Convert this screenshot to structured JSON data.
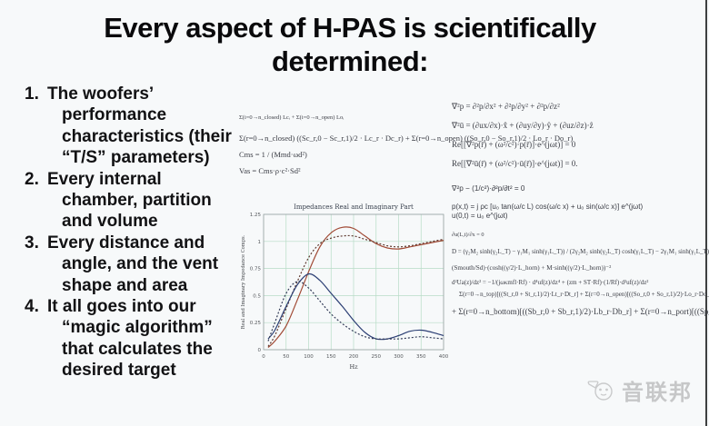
{
  "slide": {
    "title_line1": "Every aspect of H-PAS is scientifically",
    "title_line2": "determined:",
    "bullets": [
      {
        "num": "1.",
        "text": "The woofers’ performance characteristics (their “T/S” parameters)"
      },
      {
        "num": "2.",
        "text": "Every internal chamber, partition and volume"
      },
      {
        "num": "3.",
        "text": "Every distance and angle, and the vent shape and area"
      },
      {
        "num": "4.",
        "text": "It all goes into our “magic algorithm” that calculates the desired target"
      }
    ]
  },
  "math_mid": {
    "equations": [
      "Σ(i=0→n_closed) Lcᵢ  +  Σ(i=0→n_open) Loᵢ",
      "Σ(r=0→n_closed) ((Sc_r,0 − Sc_r,1)/2 · Lc_r · Dc_r)  +  Σ(r=0→n_open) ((So_r,0 − So_r,1)/2 · Lo_r · Do_r)",
      "Cms = 1 / (Mmd·ωd²)",
      "Vas = Cms·ρ·c²·Sd²"
    ]
  },
  "math_right": {
    "equations": [
      "∇²p = ∂²p/∂x² + ∂²p/∂y² + ∂²p/∂z²",
      "∇²ū = (∂ux/∂x)·x̂ + (∂uy/∂y)·ŷ + (∂uz/∂z)·ẑ",
      "Re[[∇²p(r̄) + (ω²/c²)·p(r̄)]·e^(jωt)] = 0",
      "Re[[∇²ū(r̄) + (ω²/c²)·ū(r̄)]·e^(jωt)] = 0.",
      "∇²p − (1/c²)·∂²p/∂t² = 0",
      "p(x,t) = j ρc [u₀ tan(ω/c L) cos(ω/c x) + u₀ sin(ω/c x)] e^(jωt)",
      "u(0,t) = u₀ e^(jωt)",
      "∂u(L,t)/∂x = 0",
      "D = (γ₂M₂ sinh(γ₂L_T) − γ₁M₁ sinh(γ₁L_T)) / (2γ₂M₂ sinh(γ₂L_T) cosh(γ₁L_T) − 2γ₁M₁ sinh(γ₁L_T) cosh(γ₂L_T))",
      "(Smouth/Sd)·(cosh((γ/2)·L_horn) + M·sinh((γ/2)·L_horn))⁻²",
      "d²Ua(z)/dz² = −1/(jωκmfl·Rf) · d⁴uf(z)/dz⁴ + (zm + ST·Rf)·(1/Rf)·d²uf(z)/dz²",
      "Σ(r=0→n_top)[((St_r,0 + St_r,1)/2)·Lt_r·Dt_r] + Σ(r=0→n_open)[((So_r,0 + So_r,1)/2)·Lo_r·Do_r] −",
      "+ Σ(r=0→n_bottom)[((Sb_r,0 + Sb_r,1)/2)·Lb_r·Db_r] + Σ(r=0→n_port)[((Sp_r,0 + Sp_r,1)/2)·Lp_r·Dp_r]"
    ]
  },
  "watermark": {
    "logo_icon": "speech-bubble-panda",
    "text": "音联邦"
  },
  "chart_data": {
    "type": "line",
    "title": "Impedances Real and Imaginary Part",
    "xlabel": "Hz",
    "ylabel": "Real and Imaginary Impedance Comps.",
    "xlim": [
      0,
      400
    ],
    "ylim": [
      0,
      1.25
    ],
    "xticks": [
      0,
      50,
      100,
      150,
      200,
      250,
      300,
      350,
      400
    ],
    "yticks": [
      0,
      0.25,
      0.5,
      0.75,
      1,
      1.25
    ],
    "grid": true,
    "grid_color": "#b7dcc6",
    "legend": "none",
    "x": [
      10,
      25,
      50,
      75,
      100,
      125,
      150,
      175,
      200,
      225,
      250,
      275,
      300,
      325,
      350,
      375,
      400
    ],
    "series": [
      {
        "name": "real-part-solid",
        "color": "#a14a35",
        "dash": "none",
        "values": [
          0.02,
          0.08,
          0.22,
          0.46,
          0.72,
          0.95,
          1.08,
          1.13,
          1.12,
          1.05,
          0.98,
          0.94,
          0.93,
          0.95,
          0.97,
          0.99,
          1.01
        ]
      },
      {
        "name": "real-part-dashed",
        "color": "#5f3a30",
        "dash": "2,2",
        "values": [
          0.03,
          0.13,
          0.38,
          0.63,
          0.85,
          0.98,
          1.03,
          1.05,
          1.05,
          1.02,
          0.99,
          0.96,
          0.95,
          0.96,
          0.98,
          1.0,
          1.02
        ]
      },
      {
        "name": "imaginary-part-solid",
        "color": "#2c3f74",
        "dash": "none",
        "values": [
          0.1,
          0.18,
          0.4,
          0.6,
          0.7,
          0.64,
          0.52,
          0.4,
          0.27,
          0.16,
          0.1,
          0.1,
          0.13,
          0.17,
          0.18,
          0.16,
          0.13
        ]
      },
      {
        "name": "imaginary-part-dashed",
        "color": "#333c58",
        "dash": "2,2",
        "values": [
          0.08,
          0.25,
          0.52,
          0.63,
          0.57,
          0.45,
          0.33,
          0.24,
          0.17,
          0.12,
          0.1,
          0.1,
          0.1,
          0.11,
          0.12,
          0.11,
          0.1
        ]
      }
    ]
  }
}
